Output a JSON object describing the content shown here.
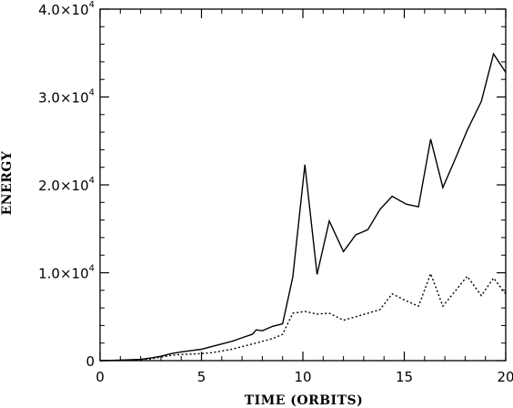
{
  "chart_data": {
    "type": "line",
    "xlabel": "TIME (ORBITS)",
    "ylabel": "ENERGY",
    "xlim": [
      0,
      20
    ],
    "ylim": [
      0,
      40000
    ],
    "x_ticks": [
      0,
      5,
      10,
      15,
      20
    ],
    "x_tick_labels": [
      "0",
      "5",
      "10",
      "15",
      "20"
    ],
    "y_ticks": [
      0,
      10000,
      20000,
      30000,
      40000
    ],
    "y_tick_labels": [
      {
        "mantissa": "0",
        "exp": ""
      },
      {
        "mantissa": "1.0×10",
        "exp": "4"
      },
      {
        "mantissa": "2.0×10",
        "exp": "4"
      },
      {
        "mantissa": "3.0×10",
        "exp": "4"
      },
      {
        "mantissa": "4.0×10",
        "exp": "4"
      }
    ],
    "grid": false,
    "legend": "none",
    "series": [
      {
        "style": "solid",
        "color": "#000000",
        "x": [
          0,
          1,
          2,
          2.5,
          3,
          3.5,
          4,
          4.5,
          5,
          5.5,
          6,
          6.5,
          7,
          7.5,
          7.7,
          8,
          8.5,
          9,
          9.5,
          10.1,
          10.7,
          11.3,
          12,
          12.6,
          13.2,
          13.8,
          14.4,
          15.1,
          15.7,
          16.3,
          16.9,
          17.5,
          18.1,
          18.8,
          19.4,
          20
        ],
        "y": [
          0,
          50,
          150,
          300,
          500,
          800,
          1000,
          1150,
          1300,
          1600,
          1900,
          2200,
          2600,
          3000,
          3500,
          3400,
          3900,
          4200,
          9500,
          22300,
          9800,
          15900,
          12400,
          14300,
          14900,
          17200,
          18700,
          17800,
          17500,
          25200,
          19700,
          22900,
          26200,
          29500,
          34900,
          32800
        ]
      },
      {
        "style": "dotted",
        "color": "#000000",
        "x": [
          0,
          1,
          2,
          2.5,
          3,
          3.5,
          4,
          4.5,
          5,
          5.5,
          6,
          6.5,
          7,
          7.5,
          8,
          8.5,
          9,
          9.5,
          10.1,
          10.7,
          11.3,
          12,
          12.6,
          13.2,
          13.8,
          14.4,
          15.1,
          15.7,
          16.3,
          16.9,
          17.5,
          18.1,
          18.8,
          19.4,
          20
        ],
        "y": [
          0,
          50,
          100,
          200,
          400,
          600,
          700,
          750,
          800,
          900,
          1100,
          1300,
          1600,
          1900,
          2200,
          2500,
          3000,
          5400,
          5600,
          5300,
          5400,
          4600,
          5000,
          5400,
          5800,
          7600,
          6800,
          6200,
          9900,
          6200,
          7900,
          9600,
          7400,
          9400,
          7600
        ]
      }
    ]
  }
}
